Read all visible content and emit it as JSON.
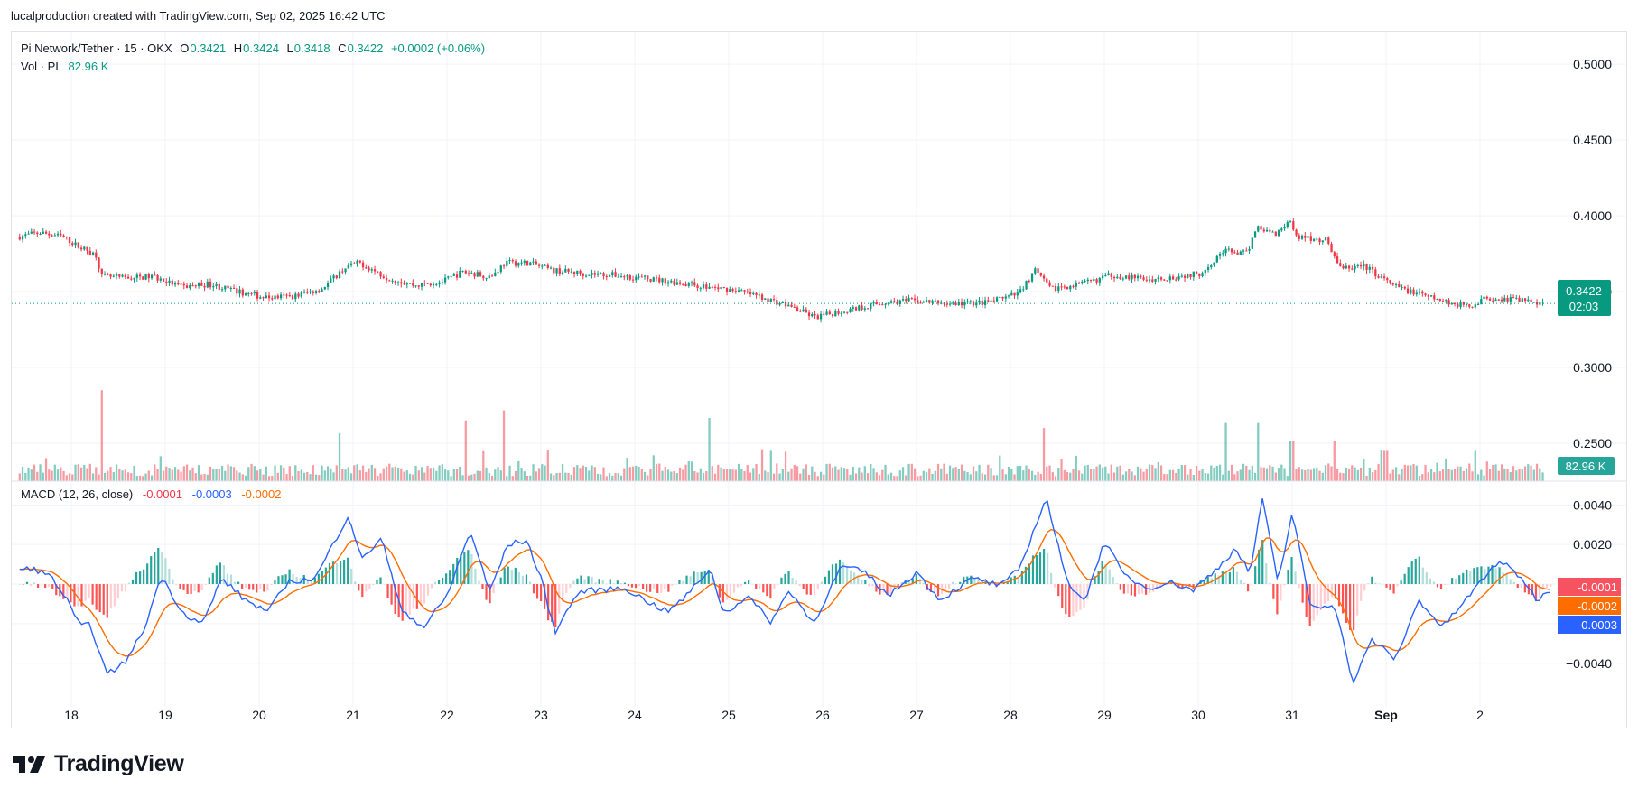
{
  "header": {
    "attribution": "lucalproduction created with TradingView.com, Sep 02, 2025 16:42 UTC"
  },
  "legend": {
    "symbol": "Pi Network/Tether · 15 · OKX",
    "o_label": "O",
    "o_value": "0.3421",
    "h_label": "H",
    "h_value": "0.3424",
    "l_label": "L",
    "l_value": "0.3418",
    "c_label": "C",
    "c_value": "0.3422",
    "change": "+0.0002 (+0.06%)",
    "vol_label": "Vol · PI",
    "vol_value": "82.96 K"
  },
  "macd_legend": {
    "label": "MACD (12, 26, close)",
    "hist": "-0.0001",
    "macd": "-0.0003",
    "signal": "-0.0002"
  },
  "price_badge": {
    "value": "0.3422",
    "countdown": "02:03"
  },
  "volume_badge": "82.96 K",
  "macd_badges": {
    "hist": "-0.0001",
    "signal": "-0.0002",
    "macd": "-0.0003"
  },
  "price_axis_ticks": [
    "0.5000",
    "0.4500",
    "0.4000",
    "0.3500",
    "0.3000",
    "0.2500"
  ],
  "macd_axis_ticks": [
    "0.0040",
    "0.0020",
    "−0.0040"
  ],
  "time_axis_ticks": [
    "18",
    "19",
    "20",
    "21",
    "22",
    "23",
    "24",
    "25",
    "26",
    "27",
    "28",
    "29",
    "30",
    "31",
    "Sep",
    "2"
  ],
  "colors": {
    "up": "#089981",
    "down": "#f23645",
    "macd": "#2962ff",
    "signal": "#ff6d00",
    "grid": "#f0f3fa"
  },
  "logo_text": "TradingView",
  "chart_data": {
    "type": "candlestick",
    "series_name": "Pi Network/Tether",
    "interval": "15",
    "price_axis": {
      "ylim": [
        0.225,
        0.5215
      ],
      "scale": "linear"
    },
    "time_axis": {
      "labels": [
        "18",
        "19",
        "20",
        "21",
        "22",
        "23",
        "24",
        "25",
        "26",
        "27",
        "28",
        "29",
        "30",
        "31",
        "Sep",
        "2"
      ]
    },
    "price_path": [
      [
        17.45,
        0.386
      ],
      [
        17.7,
        0.389
      ],
      [
        17.95,
        0.386
      ],
      [
        18.1,
        0.38
      ],
      [
        18.3,
        0.374
      ],
      [
        18.35,
        0.36
      ],
      [
        18.6,
        0.359
      ],
      [
        18.9,
        0.36
      ],
      [
        19.2,
        0.353
      ],
      [
        19.5,
        0.355
      ],
      [
        19.8,
        0.35
      ],
      [
        20.1,
        0.346
      ],
      [
        20.4,
        0.347
      ],
      [
        20.7,
        0.352
      ],
      [
        20.95,
        0.366
      ],
      [
        21.1,
        0.369
      ],
      [
        21.4,
        0.359
      ],
      [
        21.7,
        0.354
      ],
      [
        22.0,
        0.357
      ],
      [
        22.2,
        0.363
      ],
      [
        22.5,
        0.36
      ],
      [
        22.65,
        0.369
      ],
      [
        22.9,
        0.369
      ],
      [
        23.15,
        0.364
      ],
      [
        23.5,
        0.362
      ],
      [
        23.8,
        0.361
      ],
      [
        24.1,
        0.359
      ],
      [
        24.5,
        0.356
      ],
      [
        24.8,
        0.353
      ],
      [
        25.1,
        0.351
      ],
      [
        25.4,
        0.346
      ],
      [
        25.7,
        0.34
      ],
      [
        25.95,
        0.333
      ],
      [
        26.3,
        0.338
      ],
      [
        26.7,
        0.343
      ],
      [
        27.0,
        0.344
      ],
      [
        27.4,
        0.342
      ],
      [
        27.8,
        0.343
      ],
      [
        28.1,
        0.348
      ],
      [
        28.3,
        0.364
      ],
      [
        28.45,
        0.352
      ],
      [
        28.8,
        0.355
      ],
      [
        29.1,
        0.361
      ],
      [
        29.5,
        0.358
      ],
      [
        29.8,
        0.36
      ],
      [
        30.05,
        0.362
      ],
      [
        30.3,
        0.377
      ],
      [
        30.55,
        0.375
      ],
      [
        30.65,
        0.393
      ],
      [
        30.85,
        0.388
      ],
      [
        31.0,
        0.397
      ],
      [
        31.1,
        0.386
      ],
      [
        31.4,
        0.384
      ],
      [
        31.55,
        0.365
      ],
      [
        31.8,
        0.367
      ],
      [
        32.1,
        0.354
      ],
      [
        32.5,
        0.346
      ],
      [
        32.9,
        0.34
      ],
      [
        33.1,
        0.346
      ],
      [
        33.4,
        0.345
      ],
      [
        33.7,
        0.343
      ]
    ],
    "volume_spikes": [
      [
        18.33,
        0.36
      ],
      [
        20.85,
        0.19
      ],
      [
        22.2,
        0.24
      ],
      [
        22.6,
        0.28
      ],
      [
        24.8,
        0.25
      ],
      [
        25.45,
        0.12
      ],
      [
        28.35,
        0.21
      ],
      [
        30.3,
        0.23
      ],
      [
        30.65,
        0.23
      ],
      [
        31.0,
        0.16
      ],
      [
        31.45,
        0.16
      ],
      [
        32.0,
        0.12
      ],
      [
        32.95,
        0.12
      ]
    ],
    "last_volume": "82.96 K",
    "macd": {
      "params": "12, 26, close",
      "ylim": [
        -0.0062,
        0.0052
      ],
      "path": [
        [
          17.45,
          0.0007
        ],
        [
          17.6,
          0.0008
        ],
        [
          17.8,
          0.0003
        ],
        [
          17.95,
          -0.0008
        ],
        [
          18.1,
          -0.0022
        ],
        [
          18.2,
          -0.002
        ],
        [
          18.38,
          -0.0046
        ],
        [
          18.6,
          -0.0038
        ],
        [
          18.8,
          -0.002
        ],
        [
          18.95,
          0.0004
        ],
        [
          19.2,
          -0.0015
        ],
        [
          19.4,
          -0.002
        ],
        [
          19.6,
          0.0003
        ],
        [
          19.85,
          -0.0008
        ],
        [
          20.1,
          -0.0014
        ],
        [
          20.3,
          0.0001
        ],
        [
          20.6,
          0.0003
        ],
        [
          20.95,
          0.0035
        ],
        [
          21.1,
          0.0012
        ],
        [
          21.3,
          0.0024
        ],
        [
          21.5,
          -0.0012
        ],
        [
          21.75,
          -0.0022
        ],
        [
          22.0,
          -0.0006
        ],
        [
          22.25,
          0.0027
        ],
        [
          22.45,
          -0.0004
        ],
        [
          22.65,
          0.002
        ],
        [
          22.85,
          0.0022
        ],
        [
          23.0,
          0.0003
        ],
        [
          23.15,
          -0.0024
        ],
        [
          23.4,
          -0.0004
        ],
        [
          23.6,
          -0.0003
        ],
        [
          23.9,
          -0.0002
        ],
        [
          24.1,
          -0.0008
        ],
        [
          24.35,
          -0.0014
        ],
        [
          24.55,
          -0.0006
        ],
        [
          24.8,
          0.0008
        ],
        [
          24.95,
          -0.0015
        ],
        [
          25.2,
          -0.0006
        ],
        [
          25.45,
          -0.0019
        ],
        [
          25.65,
          -0.0003
        ],
        [
          25.9,
          -0.002
        ],
        [
          26.2,
          0.0009
        ],
        [
          26.45,
          0.0006
        ],
        [
          26.7,
          -0.0006
        ],
        [
          27.0,
          0.0006
        ],
        [
          27.25,
          -0.0008
        ],
        [
          27.6,
          0.0003
        ],
        [
          27.9,
          -0.0001
        ],
        [
          28.1,
          0.0008
        ],
        [
          28.38,
          0.0044
        ],
        [
          28.6,
          0.0001
        ],
        [
          28.8,
          -0.0008
        ],
        [
          29.0,
          0.0022
        ],
        [
          29.2,
          0.0005
        ],
        [
          29.45,
          -0.0002
        ],
        [
          29.7,
          0.0001
        ],
        [
          29.95,
          -0.0003
        ],
        [
          30.2,
          0.0008
        ],
        [
          30.4,
          0.0018
        ],
        [
          30.55,
          0.0005
        ],
        [
          30.68,
          0.0043
        ],
        [
          30.85,
          0.0001
        ],
        [
          31.0,
          0.0036
        ],
        [
          31.2,
          -0.0012
        ],
        [
          31.45,
          -0.001
        ],
        [
          31.65,
          -0.005
        ],
        [
          31.85,
          -0.0028
        ],
        [
          32.1,
          -0.0038
        ],
        [
          32.35,
          -0.0008
        ],
        [
          32.6,
          -0.0022
        ],
        [
          32.9,
          -0.0005
        ],
        [
          33.2,
          0.0012
        ],
        [
          33.45,
          0.0003
        ],
        [
          33.6,
          -0.0008
        ],
        [
          33.75,
          -0.0003
        ]
      ]
    }
  }
}
